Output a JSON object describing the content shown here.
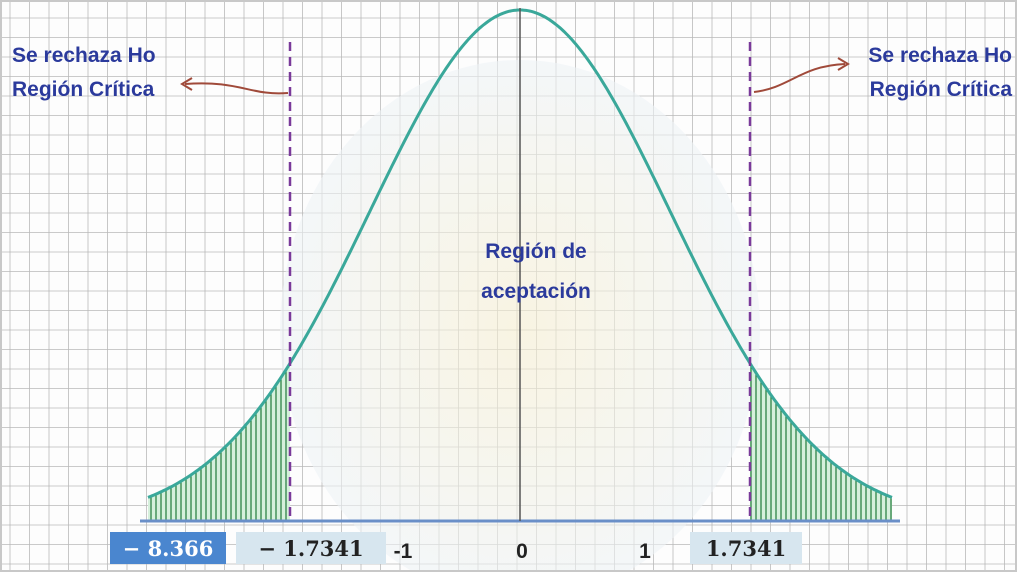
{
  "left_label": {
    "line1": "Se rechaza Ho",
    "line2": "Región Crítica"
  },
  "right_label": {
    "line1": "Se rechaza Ho",
    "line2": "Región Crítica"
  },
  "center_label": {
    "line1": "Región de",
    "line2": "aceptación"
  },
  "axis_labels": [
    "− 8.366",
    "− 1.7341",
    "-1",
    "0",
    "1",
    "1.7341"
  ]
}
